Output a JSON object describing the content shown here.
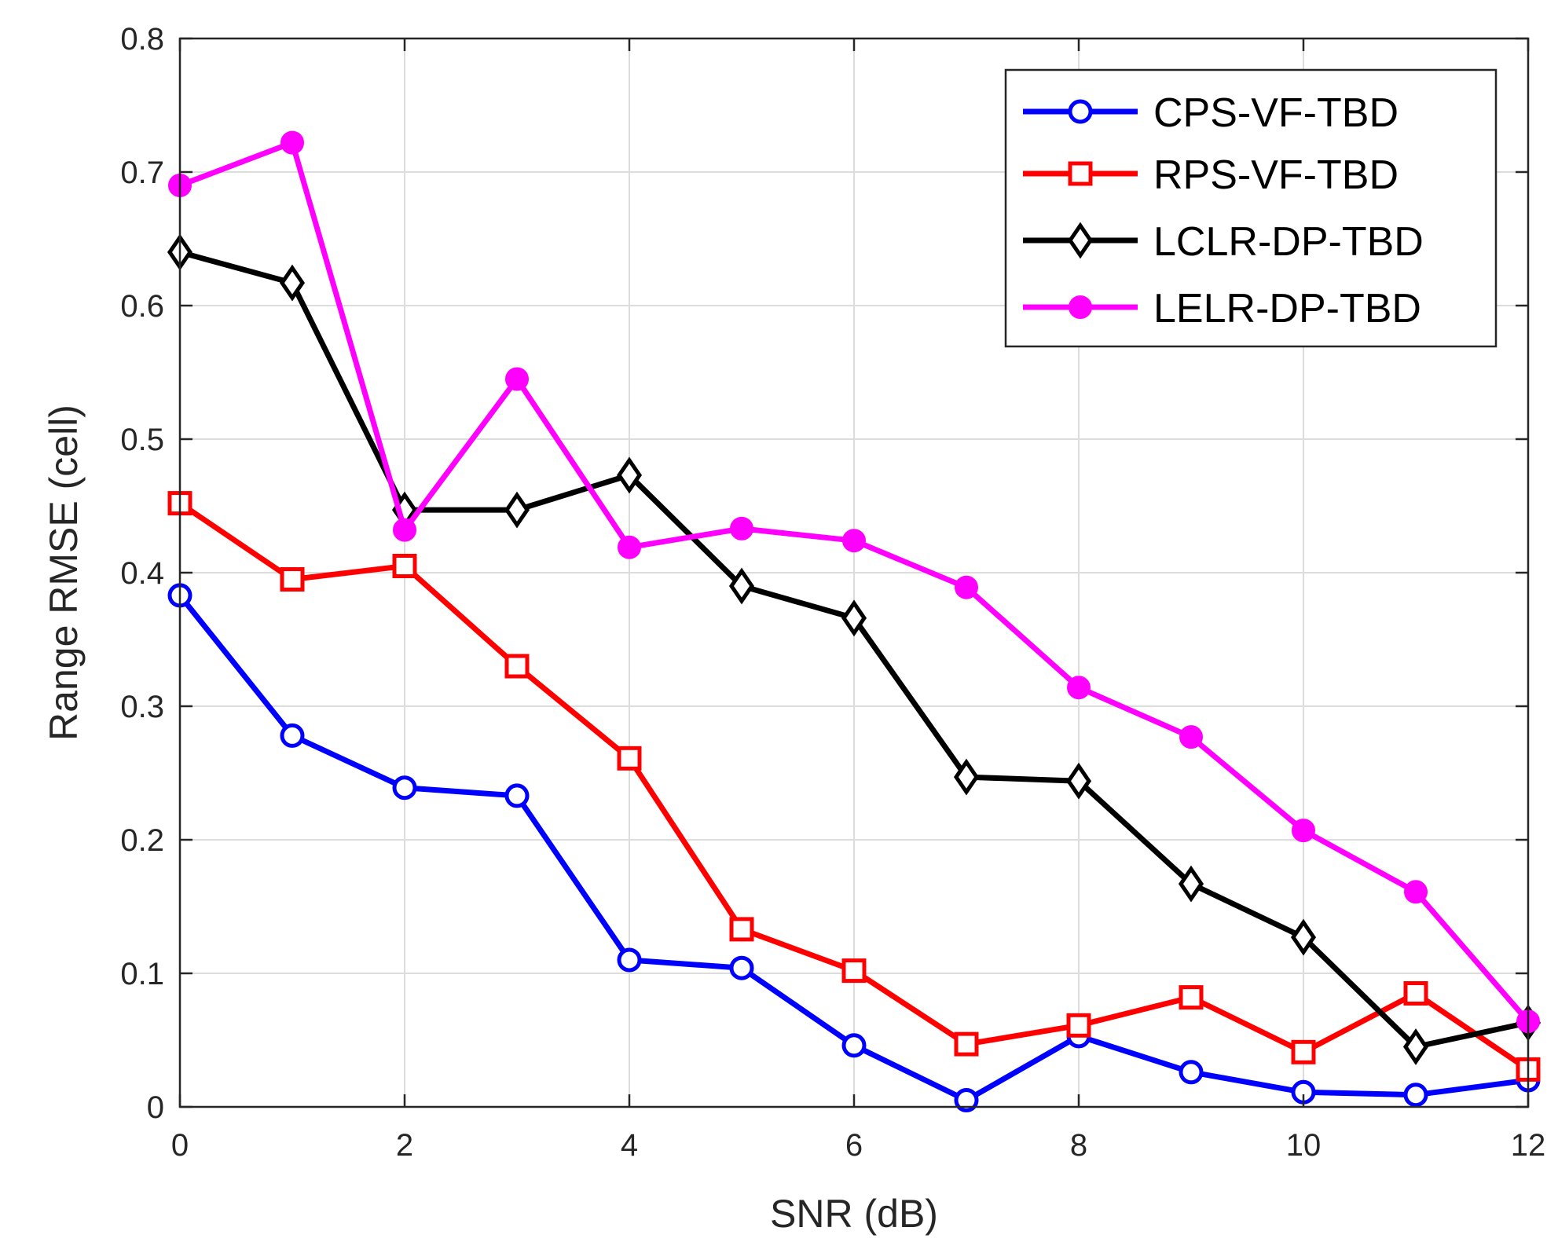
{
  "chart_data": {
    "type": "line",
    "title": "",
    "xlabel": "SNR (dB)",
    "ylabel": "Range RMSE (cell)",
    "xlim": [
      0,
      12
    ],
    "ylim": [
      0,
      0.8
    ],
    "xticks": [
      0,
      2,
      4,
      6,
      8,
      10,
      12
    ],
    "xtick_labels": [
      "0",
      "2",
      "4",
      "6",
      "8",
      "10",
      "12"
    ],
    "yticks": [
      0,
      0.1,
      0.2,
      0.3,
      0.4,
      0.5,
      0.6,
      0.7,
      0.8
    ],
    "ytick_labels": [
      "0",
      "0.1",
      "0.2",
      "0.3",
      "0.4",
      "0.5",
      "0.6",
      "0.7",
      "0.8"
    ],
    "grid": true,
    "legend_position": "top-right",
    "x": [
      0,
      1,
      2,
      3,
      4,
      5,
      6,
      7,
      8,
      9,
      10,
      11,
      12
    ],
    "series": [
      {
        "name": "CPS-VF-TBD",
        "color": "#0000ff",
        "marker": "circle-open",
        "values": [
          0.383,
          0.278,
          0.239,
          0.233,
          0.11,
          0.104,
          0.046,
          0.005,
          0.053,
          0.026,
          0.011,
          0.009,
          0.02
        ]
      },
      {
        "name": "RPS-VF-TBD",
        "color": "#ff0000",
        "marker": "square-open",
        "values": [
          0.452,
          0.395,
          0.405,
          0.33,
          0.261,
          0.133,
          0.102,
          0.047,
          0.061,
          0.082,
          0.041,
          0.085,
          0.028
        ]
      },
      {
        "name": "LCLR-DP-TBD",
        "color": "#000000",
        "marker": "diamond-open",
        "values": [
          0.64,
          0.617,
          0.447,
          0.447,
          0.473,
          0.39,
          0.366,
          0.247,
          0.244,
          0.167,
          0.127,
          0.045,
          0.063
        ]
      },
      {
        "name": "LELR-DP-TBD",
        "color": "#ff00ff",
        "marker": "circle-filled",
        "values": [
          0.69,
          0.722,
          0.432,
          0.545,
          0.419,
          0.433,
          0.424,
          0.389,
          0.314,
          0.277,
          0.207,
          0.161,
          0.064
        ]
      }
    ]
  }
}
